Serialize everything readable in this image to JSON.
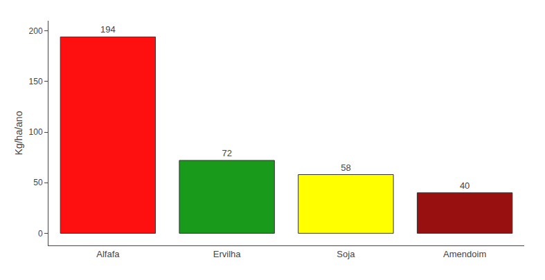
{
  "chart_data": {
    "type": "bar",
    "categories": [
      "Alfafa",
      "Ervilha",
      "Soja",
      "Amendoim"
    ],
    "values": [
      194,
      72,
      58,
      40
    ],
    "colors": [
      "#ff1010",
      "#1a9a1a",
      "#ffff00",
      "#991010"
    ],
    "ylabel": "Kg/ha/ano",
    "ylim": [
      -12,
      210
    ],
    "yticks": [
      0,
      50,
      100,
      150,
      200
    ],
    "grid": false,
    "data_labels": true
  }
}
